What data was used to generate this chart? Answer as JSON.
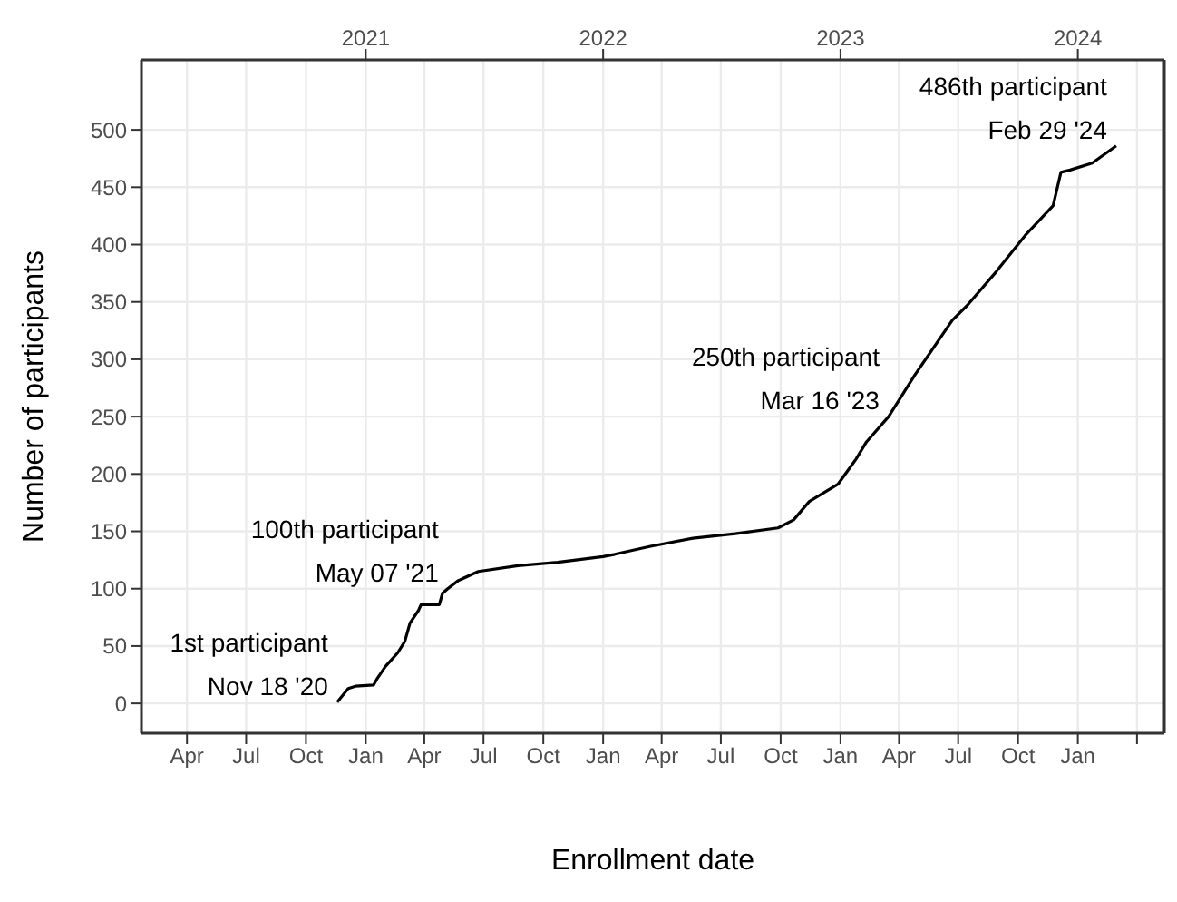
{
  "chart_data": {
    "type": "line",
    "xlabel": "Enrollment date",
    "ylabel": "Number of participants",
    "x": [
      "2020-11-18",
      "2020-12-05",
      "2020-12-16",
      "2021-01-13",
      "2021-01-19",
      "2021-01-31",
      "2021-02-19",
      "2021-03-02",
      "2021-03-10",
      "2021-03-23",
      "2021-03-27",
      "2021-04-24",
      "2021-04-29",
      "2021-05-07",
      "2021-05-23",
      "2021-06-23",
      "2021-08-23",
      "2021-10-23",
      "2022-01-01",
      "2022-01-19",
      "2022-03-15",
      "2022-05-19",
      "2022-07-23",
      "2022-09-27",
      "2022-10-21",
      "2022-11-14",
      "2022-12-28",
      "2023-01-25",
      "2023-02-10",
      "2023-03-16",
      "2023-04-25",
      "2023-06-22",
      "2023-07-15",
      "2023-08-28",
      "2023-10-12",
      "2023-11-24",
      "2023-12-06",
      "2023-12-20",
      "2024-01-23",
      "2024-02-29"
    ],
    "series": [
      {
        "color": "#000000",
        "values": [
          1,
          13,
          15,
          16,
          22,
          32,
          44,
          54,
          70,
          81,
          86,
          86,
          96,
          100,
          107,
          115,
          120,
          123,
          128,
          130,
          137,
          144,
          148,
          153,
          160,
          176,
          191,
          213,
          228,
          250,
          286,
          334,
          347,
          376,
          408,
          434,
          463,
          465,
          471,
          486
        ]
      }
    ],
    "xlim": [
      "2020-01-22",
      "2024-05-13"
    ],
    "xticks": [
      {
        "value": "2020-04-01",
        "label": "Apr"
      },
      {
        "value": "2020-07-01",
        "label": "Jul"
      },
      {
        "value": "2020-10-01",
        "label": "Oct"
      },
      {
        "value": "2021-01-01",
        "label": "Jan"
      },
      {
        "value": "2021-04-01",
        "label": "Apr"
      },
      {
        "value": "2021-07-01",
        "label": "Jul"
      },
      {
        "value": "2021-10-01",
        "label": "Oct"
      },
      {
        "value": "2022-01-01",
        "label": "Jan"
      },
      {
        "value": "2022-04-01",
        "label": "Apr"
      },
      {
        "value": "2022-07-01",
        "label": "Jul"
      },
      {
        "value": "2022-10-01",
        "label": "Oct"
      },
      {
        "value": "2023-01-01",
        "label": "Jan"
      },
      {
        "value": "2023-04-01",
        "label": "Apr"
      },
      {
        "value": "2023-07-01",
        "label": "Jul"
      },
      {
        "value": "2023-10-01",
        "label": "Oct"
      },
      {
        "value": "2024-01-01",
        "label": "Jan"
      },
      {
        "value": "2024-04-01",
        "label": null
      }
    ],
    "x2lim": [
      "2020-01-22",
      "2024-05-13"
    ],
    "x2ticks": [
      {
        "value": "2021-01-01",
        "label": "2021"
      },
      {
        "value": "2022-01-01",
        "label": "2022"
      },
      {
        "value": "2023-01-01",
        "label": "2023"
      },
      {
        "value": "2024-01-01",
        "label": "2024"
      }
    ],
    "ylim": [
      -26,
      561
    ],
    "yticks": [
      0,
      50,
      100,
      150,
      200,
      250,
      300,
      350,
      400,
      450,
      500
    ],
    "grid": true,
    "marker": "none",
    "line_style": "solid",
    "annotations": [
      {
        "text": "1st participant\nNov 18 '20",
        "x": "2020-11-18",
        "y": 1
      },
      {
        "text": "100th participant\nMay 07 '21",
        "x": "2021-05-07",
        "y": 100
      },
      {
        "text": "250th participant\nMar 16 '23",
        "x": "2023-03-16",
        "y": 250
      },
      {
        "text": "486th participant\nFeb 29 '24",
        "x": "2024-02-29",
        "y": 486
      }
    ]
  }
}
